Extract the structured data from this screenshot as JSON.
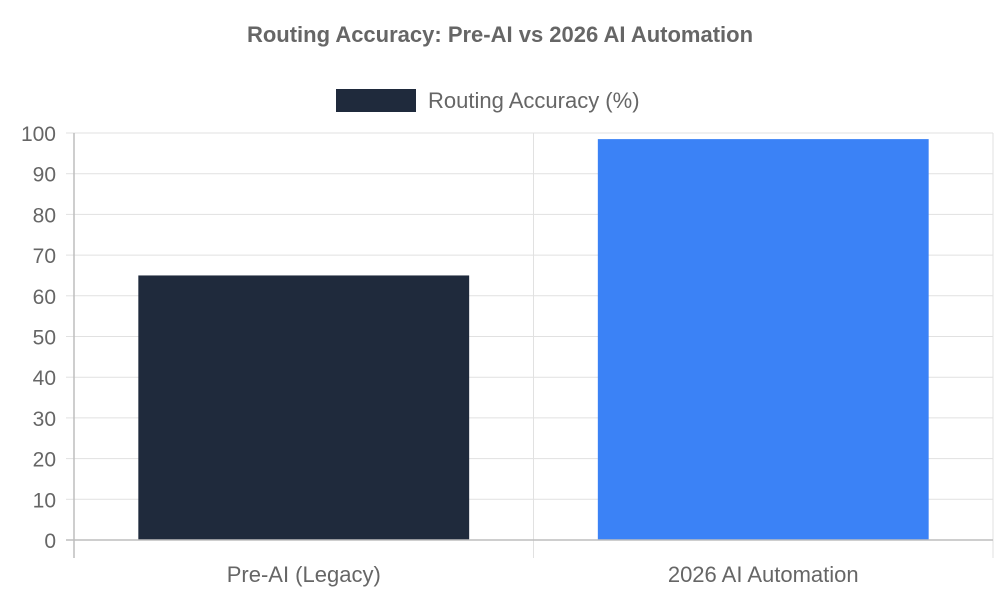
{
  "chart_data": {
    "type": "bar",
    "title": "Routing Accuracy: Pre-AI vs 2026 AI Automation",
    "xlabel": "",
    "ylabel": "",
    "categories": [
      "Pre-AI (Legacy)",
      "2026 AI Automation"
    ],
    "series": [
      {
        "name": "Routing Accuracy (%)",
        "values": [
          65,
          98.5
        ],
        "colors": [
          "#1f2a3c",
          "#3b82f6"
        ]
      }
    ],
    "ylim": [
      0,
      100
    ],
    "yticks": [
      "0",
      "10",
      "20",
      "30",
      "40",
      "50",
      "60",
      "70",
      "80",
      "90",
      "100"
    ],
    "grid": true,
    "legend_position": "top-center"
  }
}
